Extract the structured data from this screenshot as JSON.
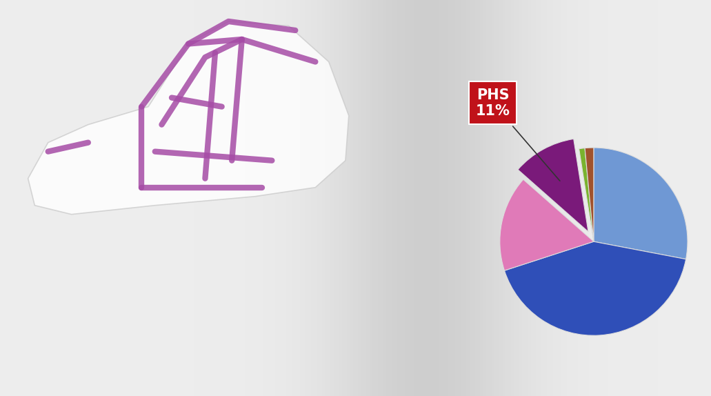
{
  "chart_data": {
    "type": "pie",
    "categories": [
      null,
      null,
      null,
      "PHS",
      null,
      null
    ],
    "values": [
      28,
      42,
      16.5,
      11,
      1,
      1.5
    ],
    "value_labels": [
      null,
      null,
      null,
      "11%",
      null,
      null
    ],
    "colors": [
      "#6f98d4",
      "#2f4fb8",
      "#e07ab8",
      "#7a1a7a",
      "#7ab32e",
      "#a0522d"
    ]
  }
}
